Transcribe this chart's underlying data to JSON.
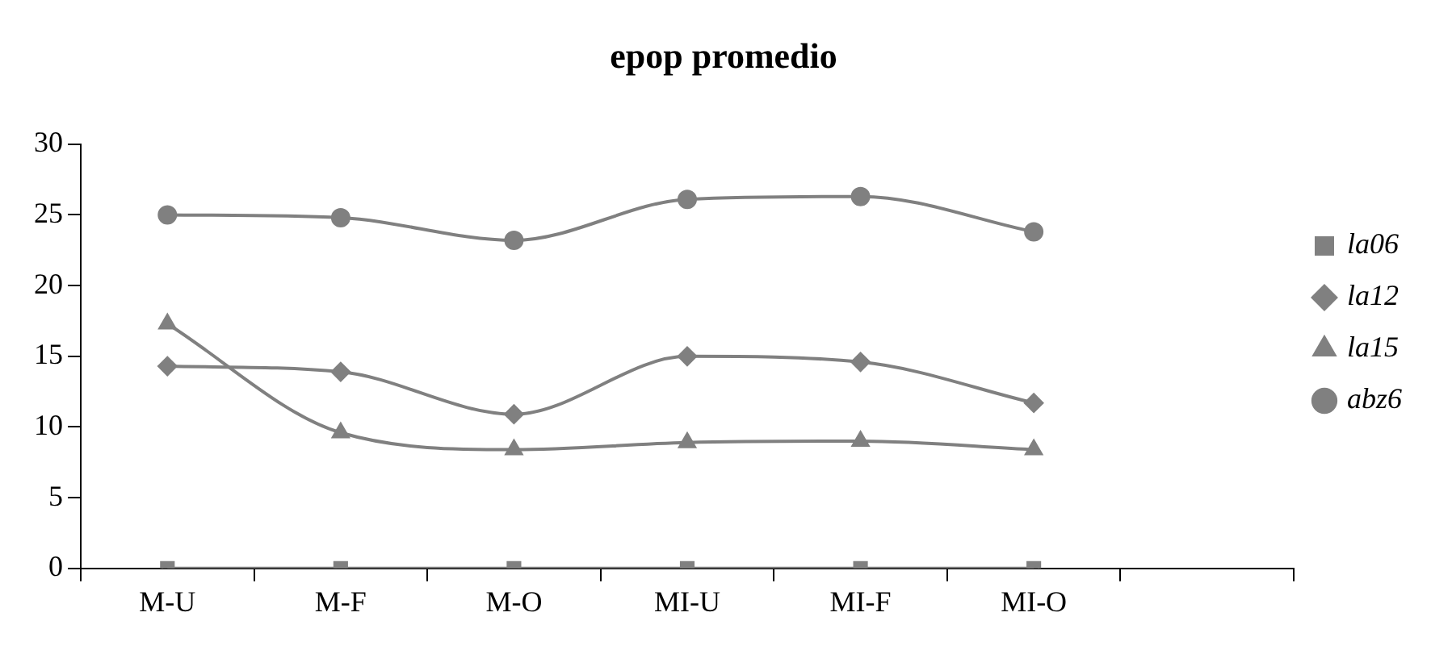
{
  "chart_data": {
    "type": "line",
    "title": "epop promedio",
    "categories": [
      "M-U",
      "M-F",
      "M-O",
      "MI-U",
      "MI-F",
      "MI-O",
      null
    ],
    "series": [
      {
        "name": "la06",
        "color": "#808080",
        "marker": "square",
        "values": [
          0,
          0,
          0,
          0,
          0,
          0,
          null
        ]
      },
      {
        "name": "la12",
        "color": "#808080",
        "marker": "diamond",
        "values": [
          14.3,
          13.9,
          10.9,
          15.0,
          14.6,
          11.7,
          null
        ]
      },
      {
        "name": "la15",
        "color": "#808080",
        "marker": "triangle",
        "values": [
          17.3,
          9.6,
          8.4,
          8.9,
          9.0,
          8.4,
          null
        ]
      },
      {
        "name": "abz6",
        "color": "#808080",
        "marker": "circle",
        "values": [
          25.0,
          24.8,
          23.2,
          26.1,
          26.3,
          23.8,
          null
        ]
      }
    ],
    "ylim": [
      0,
      30
    ],
    "yticks": [
      0,
      5,
      10,
      15,
      20,
      25,
      30
    ],
    "grid": false,
    "legend": "right"
  }
}
